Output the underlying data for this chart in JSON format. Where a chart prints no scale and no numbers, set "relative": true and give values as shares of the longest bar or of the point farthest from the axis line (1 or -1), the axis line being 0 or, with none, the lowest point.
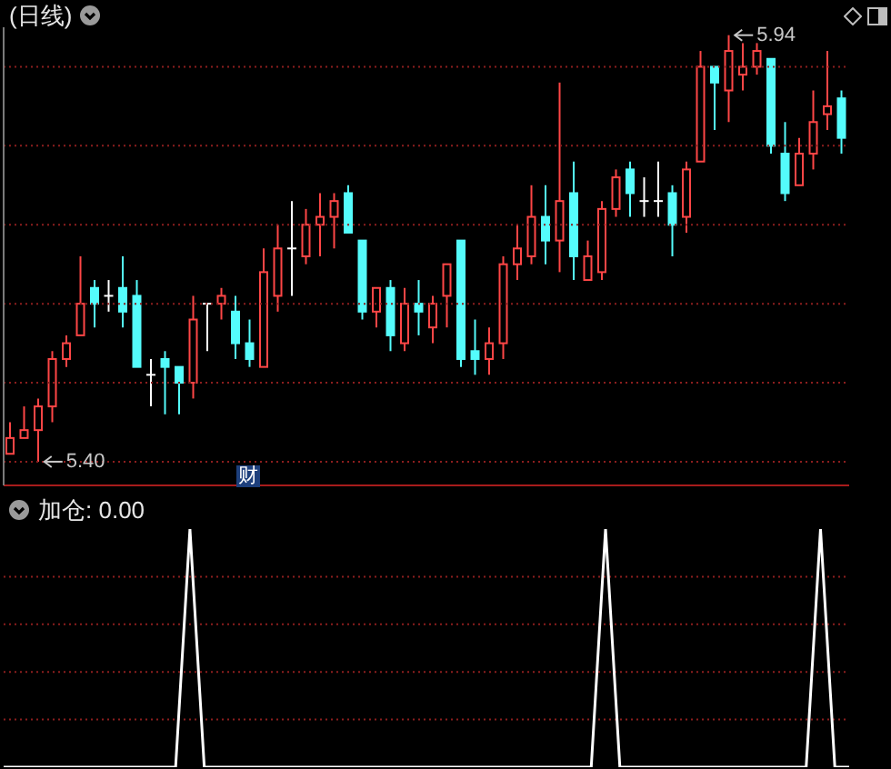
{
  "chart_data": [
    {
      "type": "candlestick",
      "title": "(日线)",
      "categories": [
        null,
        null,
        null,
        null,
        null,
        null,
        null,
        null,
        null,
        null,
        null,
        null,
        null,
        null,
        null,
        null,
        null,
        null,
        null,
        null,
        null,
        null,
        null,
        null,
        null,
        null,
        null,
        null,
        null,
        null,
        null,
        null,
        null,
        null,
        null,
        null,
        null,
        null,
        null,
        null,
        null,
        null,
        null,
        null,
        null,
        null,
        null,
        null,
        null,
        null,
        null,
        null,
        null,
        null,
        null,
        null,
        null,
        null,
        null,
        null
      ],
      "ohlc": [
        [
          5.41,
          5.45,
          5.41,
          5.43
        ],
        [
          5.43,
          5.47,
          5.43,
          5.44
        ],
        [
          5.44,
          5.48,
          5.4,
          5.47
        ],
        [
          5.47,
          5.54,
          5.45,
          5.53
        ],
        [
          5.53,
          5.56,
          5.52,
          5.55
        ],
        [
          5.56,
          5.66,
          5.56,
          5.6
        ],
        [
          5.62,
          5.63,
          5.57,
          5.6
        ],
        [
          5.61,
          5.63,
          5.59,
          5.61
        ],
        [
          5.62,
          5.66,
          5.57,
          5.59
        ],
        [
          5.61,
          5.63,
          5.52,
          5.52
        ],
        [
          5.51,
          5.53,
          5.47,
          5.51
        ],
        [
          5.53,
          5.54,
          5.46,
          5.52
        ],
        [
          5.52,
          5.52,
          5.46,
          5.5
        ],
        [
          5.5,
          5.61,
          5.48,
          5.58
        ],
        [
          5.6,
          5.6,
          5.54,
          5.6
        ],
        [
          5.6,
          5.62,
          5.58,
          5.61
        ],
        [
          5.59,
          5.61,
          5.53,
          5.55
        ],
        [
          5.55,
          5.58,
          5.52,
          5.53
        ],
        [
          5.52,
          5.67,
          5.52,
          5.64
        ],
        [
          5.61,
          5.7,
          5.59,
          5.67
        ],
        [
          5.67,
          5.73,
          5.61,
          5.67
        ],
        [
          5.66,
          5.72,
          5.65,
          5.7
        ],
        [
          5.7,
          5.74,
          5.66,
          5.71
        ],
        [
          5.71,
          5.74,
          5.67,
          5.73
        ],
        [
          5.74,
          5.75,
          5.69,
          5.69
        ],
        [
          5.68,
          5.68,
          5.58,
          5.59
        ],
        [
          5.59,
          5.62,
          5.57,
          5.62
        ],
        [
          5.62,
          5.63,
          5.54,
          5.56
        ],
        [
          5.55,
          5.62,
          5.54,
          5.6
        ],
        [
          5.6,
          5.63,
          5.56,
          5.59
        ],
        [
          5.57,
          5.61,
          5.55,
          5.6
        ],
        [
          5.61,
          5.65,
          5.57,
          5.65
        ],
        [
          5.68,
          5.68,
          5.52,
          5.53
        ],
        [
          5.54,
          5.58,
          5.51,
          5.53
        ],
        [
          5.53,
          5.57,
          5.51,
          5.55
        ],
        [
          5.55,
          5.66,
          5.53,
          5.65
        ],
        [
          5.65,
          5.7,
          5.63,
          5.67
        ],
        [
          5.66,
          5.75,
          5.65,
          5.71
        ],
        [
          5.71,
          5.75,
          5.65,
          5.68
        ],
        [
          5.68,
          5.88,
          5.64,
          5.73
        ],
        [
          5.74,
          5.78,
          5.63,
          5.66
        ],
        [
          5.63,
          5.68,
          5.63,
          5.66
        ],
        [
          5.64,
          5.73,
          5.63,
          5.72
        ],
        [
          5.72,
          5.77,
          5.71,
          5.76
        ],
        [
          5.77,
          5.78,
          5.71,
          5.74
        ],
        [
          5.73,
          5.76,
          5.71,
          5.73
        ],
        [
          5.73,
          5.78,
          5.71,
          5.73
        ],
        [
          5.74,
          5.75,
          5.66,
          5.7
        ],
        [
          5.71,
          5.78,
          5.69,
          5.77
        ],
        [
          5.78,
          5.92,
          5.78,
          5.9
        ],
        [
          5.9,
          5.9,
          5.82,
          5.88
        ],
        [
          5.87,
          5.94,
          5.83,
          5.92
        ],
        [
          5.89,
          5.93,
          5.87,
          5.9
        ],
        [
          5.9,
          5.93,
          5.89,
          5.92
        ],
        [
          5.91,
          5.91,
          5.79,
          5.8
        ],
        [
          5.79,
          5.83,
          5.73,
          5.74
        ],
        [
          5.75,
          5.81,
          5.75,
          5.79
        ],
        [
          5.79,
          5.87,
          5.77,
          5.83
        ],
        [
          5.84,
          5.92,
          5.82,
          5.85
        ],
        [
          5.86,
          5.87,
          5.79,
          5.81
        ]
      ],
      "ylim": [
        5.37,
        5.95
      ],
      "yticks": [
        {
          "value": 5.4,
          "label": null
        },
        {
          "value": 5.5,
          "label": null
        },
        {
          "value": 5.6,
          "label": null
        },
        {
          "value": 5.7,
          "label": null
        },
        {
          "value": 5.8,
          "label": null
        },
        {
          "value": 5.9,
          "label": null
        }
      ],
      "grid": "y",
      "tick_labels": false,
      "annotations": [
        "5.94",
        "5.40",
        "财"
      ]
    },
    {
      "type": "line",
      "title": "加仓: 0.00",
      "categories": [
        null,
        null,
        null,
        null,
        null,
        null,
        null,
        null,
        null,
        null,
        null,
        null,
        null,
        null,
        null,
        null,
        null,
        null,
        null,
        null,
        null,
        null,
        null,
        null,
        null,
        null,
        null,
        null,
        null,
        null,
        null,
        null,
        null,
        null,
        null,
        null,
        null,
        null,
        null,
        null,
        null,
        null,
        null,
        null,
        null,
        null,
        null,
        null,
        null,
        null,
        null,
        null,
        null,
        null,
        null,
        null,
        null,
        null,
        null,
        null
      ],
      "series": [
        {
          "color": "#ffffff",
          "values": [
            0,
            0,
            0,
            0,
            0,
            0,
            0,
            0,
            0,
            0,
            0,
            0,
            0,
            1,
            0,
            0,
            0,
            0,
            0,
            0,
            0,
            0,
            0,
            0,
            0,
            0,
            0,
            0,
            0,
            0,
            0,
            0,
            0,
            0,
            0,
            0,
            0,
            0,
            0,
            0,
            0,
            0,
            1,
            0,
            0,
            0,
            0,
            0,
            0,
            0,
            0,
            0,
            0,
            0,
            0,
            0,
            0,
            1,
            0,
            0
          ]
        }
      ],
      "relative": true,
      "tick_labels": false,
      "ref_lines": [
        {
          "axis": "y",
          "value": 0.2,
          "color": "#8c1e1e",
          "line_style": "dotted"
        },
        {
          "axis": "y",
          "value": 0.4,
          "color": "#8c1e1e",
          "line_style": "dotted"
        },
        {
          "axis": "y",
          "value": 0.6,
          "color": "#8c1e1e",
          "line_style": "dotted"
        },
        {
          "axis": "y",
          "value": 0.8,
          "color": "#8c1e1e",
          "line_style": "dotted"
        }
      ]
    }
  ]
}
